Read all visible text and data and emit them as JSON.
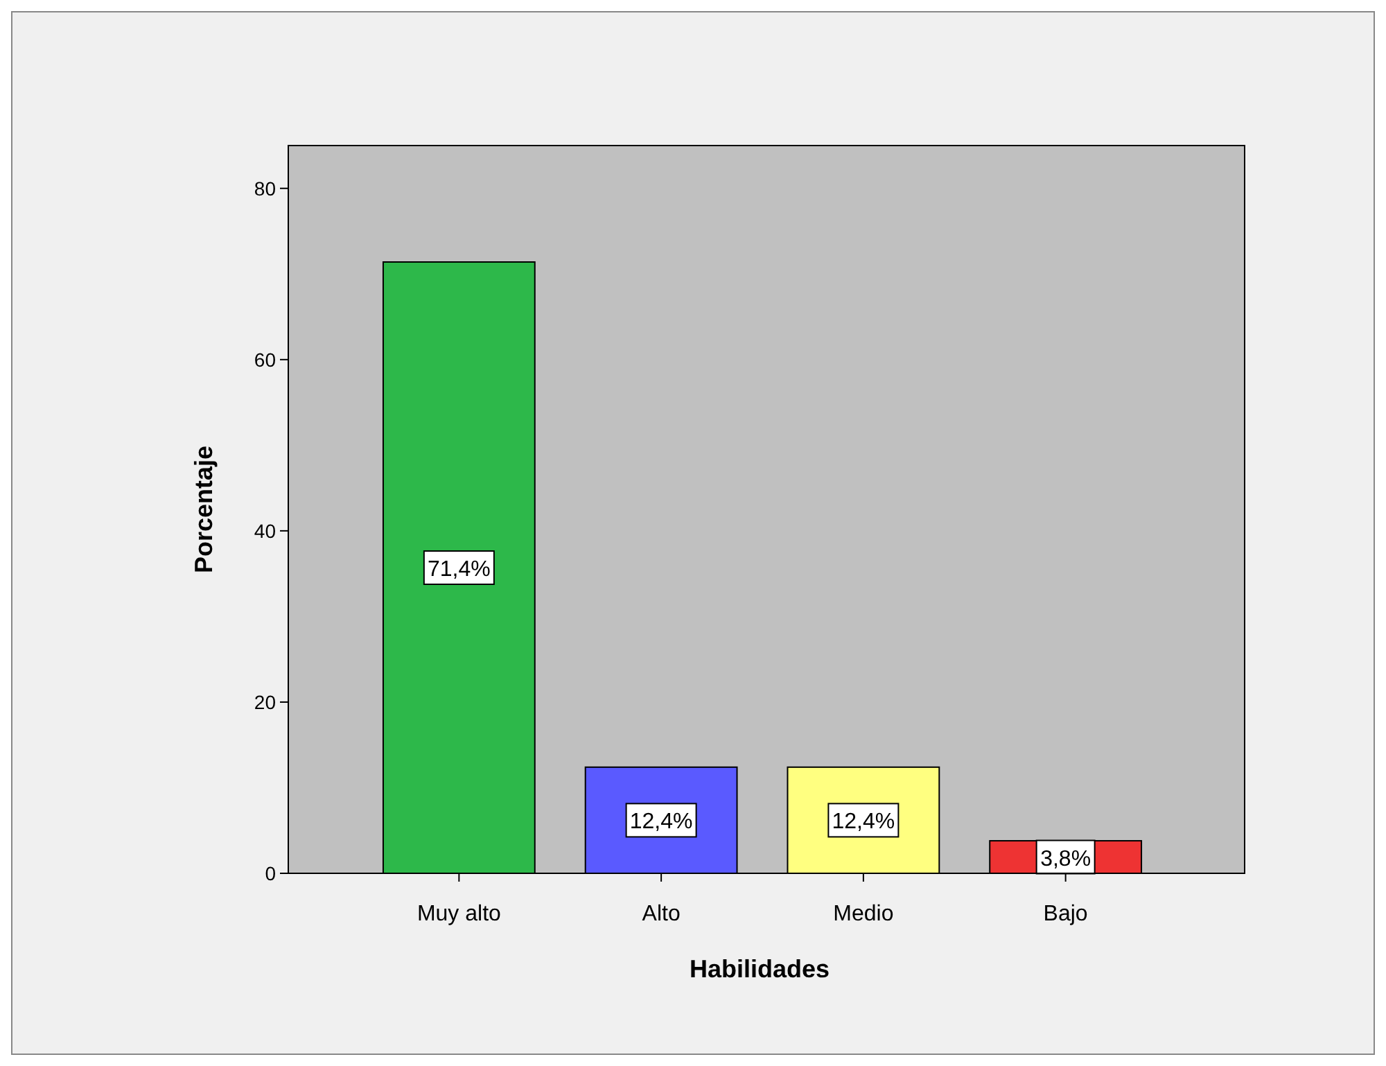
{
  "chart_data": {
    "type": "bar",
    "xlabel": "Habilidades",
    "ylabel": "Porcentaje",
    "categories": [
      "Muy alto",
      "Alto",
      "Medio",
      "Bajo"
    ],
    "values": [
      71.4,
      12.4,
      12.4,
      3.8
    ],
    "colors": [
      "#2db84a",
      "#5a5aff",
      "#ffff80",
      "#ee3333"
    ],
    "value_labels": [
      "71,4%",
      "12,4%",
      "12,4%",
      "3,8%"
    ],
    "ylim": [
      0,
      85
    ],
    "yticks": [
      0,
      20,
      40,
      60,
      80
    ]
  }
}
